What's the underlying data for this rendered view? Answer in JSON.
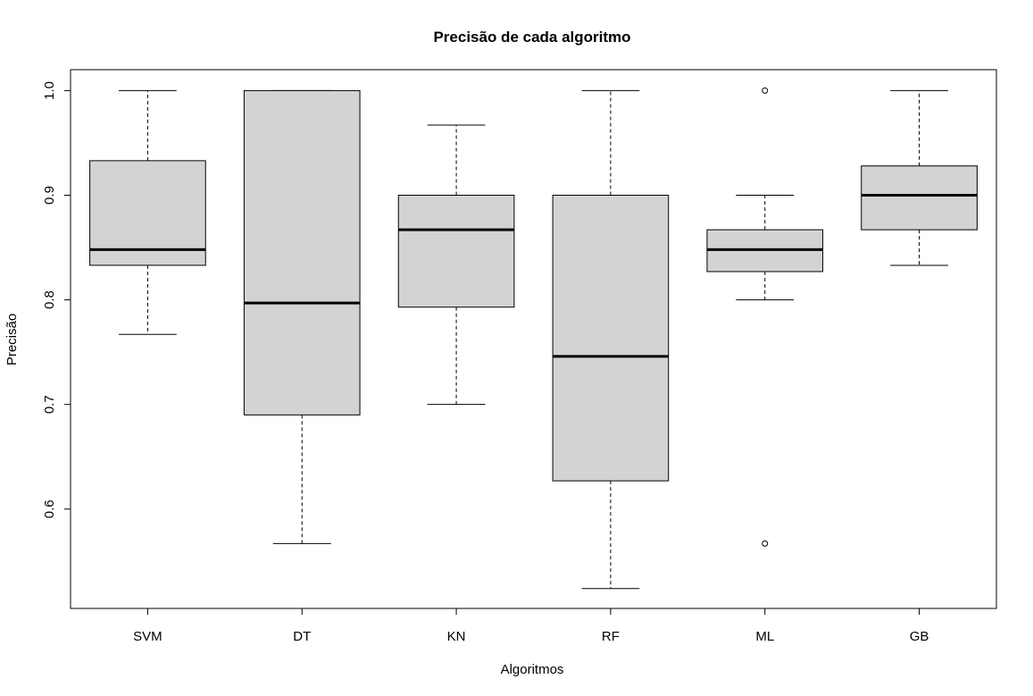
{
  "chart_data": {
    "type": "box",
    "title": "Precisão de cada algoritmo",
    "xlabel": "Algoritmos",
    "ylabel": "Precisão",
    "ylim": [
      0.505,
      1.02
    ],
    "yticks": [
      "0.6",
      "0.7",
      "0.8",
      "0.9",
      "1.0"
    ],
    "grid": false,
    "legend": "none",
    "box_fill": "#d3d3d3",
    "line_color": "#000000",
    "categories": [
      "SVM",
      "DT",
      "KN",
      "RF",
      "ML",
      "GB"
    ],
    "boxes": [
      {
        "name": "SVM",
        "whisker_low": 0.767,
        "q1": 0.833,
        "median": 0.848,
        "q3": 0.933,
        "whisker_high": 1.0,
        "outliers": []
      },
      {
        "name": "DT",
        "whisker_low": 0.567,
        "q1": 0.69,
        "median": 0.797,
        "q3": 1.0,
        "whisker_high": 1.0,
        "outliers": []
      },
      {
        "name": "KN",
        "whisker_low": 0.7,
        "q1": 0.793,
        "median": 0.867,
        "q3": 0.9,
        "whisker_high": 0.967,
        "outliers": []
      },
      {
        "name": "RF",
        "whisker_low": 0.524,
        "q1": 0.627,
        "median": 0.746,
        "q3": 0.9,
        "whisker_high": 1.0,
        "outliers": []
      },
      {
        "name": "ML",
        "whisker_low": 0.8,
        "q1": 0.827,
        "median": 0.848,
        "q3": 0.867,
        "whisker_high": 0.9,
        "outliers": [
          1.0,
          0.567
        ]
      },
      {
        "name": "GB",
        "whisker_low": 0.833,
        "q1": 0.867,
        "median": 0.9,
        "q3": 0.928,
        "whisker_high": 1.0,
        "outliers": []
      }
    ]
  }
}
